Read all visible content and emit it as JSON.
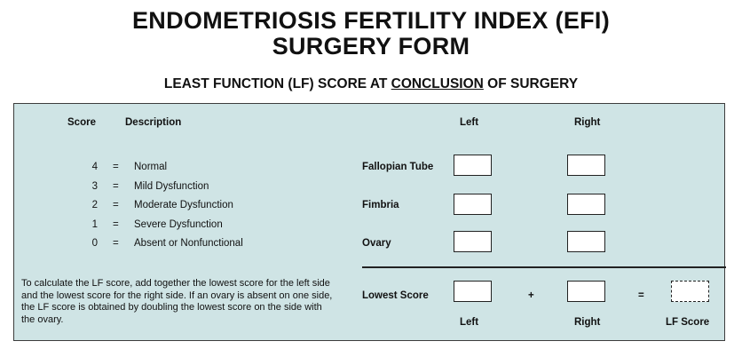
{
  "title": {
    "line1": "ENDOMETRIOSIS FERTILITY INDEX (EFI)",
    "line2": "SURGERY FORM"
  },
  "subtitle": {
    "prefix": "LEAST FUNCTION (LF) SCORE AT ",
    "underlined": "CONCLUSION",
    "suffix": " OF SURGERY"
  },
  "headers": {
    "score": "Score",
    "description": "Description",
    "left": "Left",
    "right": "Right"
  },
  "scale": [
    {
      "score": "4",
      "eq": "=",
      "desc": "Normal"
    },
    {
      "score": "3",
      "eq": "=",
      "desc": "Mild Dysfunction"
    },
    {
      "score": "2",
      "eq": "=",
      "desc": "Moderate Dysfunction"
    },
    {
      "score": "1",
      "eq": "=",
      "desc": "Severe Dysfunction"
    },
    {
      "score": "0",
      "eq": "=",
      "desc": "Absent or Nonfunctional"
    }
  ],
  "rows": {
    "fallopian": "Fallopian Tube",
    "fimbria": "Fimbria",
    "ovary": "Ovary"
  },
  "note": "To calculate the LF score, add together the lowest score for the left side and the lowest score for the right side. If an ovary is absent on one side, the LF score is obtained by doubling the lowest score on the side with the ovary.",
  "lowest": {
    "label": "Lowest Score",
    "plus": "+",
    "equals": "=",
    "left": "Left",
    "right": "Right",
    "lf": "LF Score"
  }
}
